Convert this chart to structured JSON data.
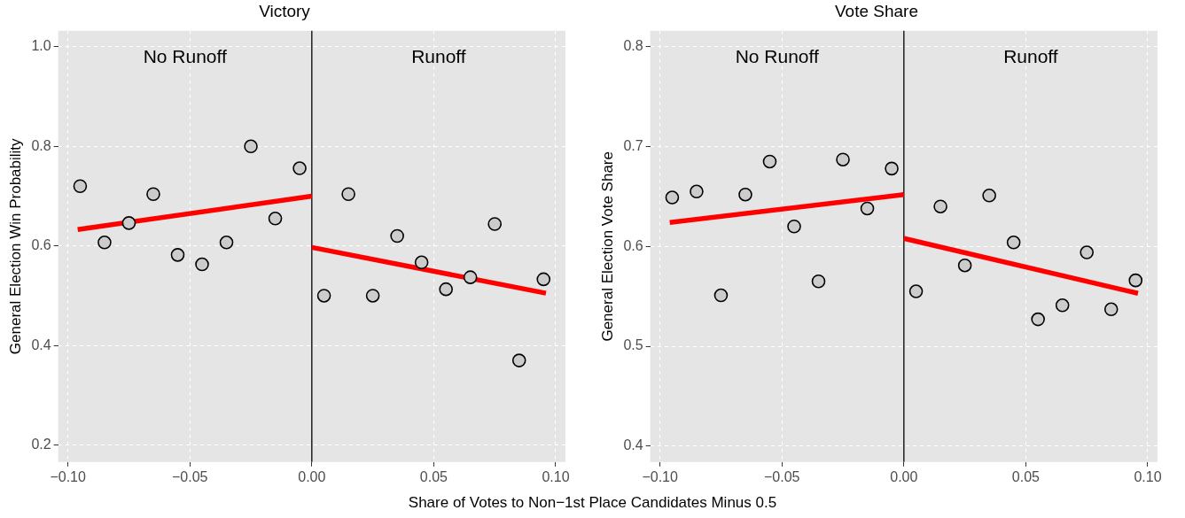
{
  "chart_data": [
    {
      "type": "scatter",
      "title": "Victory",
      "xlabel": "Share of Votes to Non−1st Place Candidates Minus 0.5",
      "ylabel": "General Election Win Probability",
      "xlim": [
        -0.104,
        0.104
      ],
      "xticks": [
        {
          "value": -0.1,
          "label": "−0.10"
        },
        {
          "value": -0.05,
          "label": "−0.05"
        },
        {
          "value": 0,
          "label": "0.00"
        },
        {
          "value": 0.05,
          "label": "0.05"
        },
        {
          "value": 0.1,
          "label": "0.10"
        }
      ],
      "ylim": [
        0.166,
        1.032
      ],
      "yticks": [
        {
          "value": 0.2,
          "label": "0.2"
        },
        {
          "value": 0.4,
          "label": "0.4"
        },
        {
          "value": 0.6,
          "label": "0.6"
        },
        {
          "value": 0.8,
          "label": "0.8"
        },
        {
          "value": 1.0,
          "label": "1.0"
        }
      ],
      "grid": true,
      "legend": false,
      "annotations": [
        "No Runoff",
        "Runoff"
      ],
      "ref_lines": [
        {
          "axis": "x",
          "value": 0,
          "color": "#000000"
        }
      ],
      "series": [
        {
          "type": "scatter",
          "marker": "circle",
          "color": "#cccccc",
          "x": [
            -0.095,
            -0.085,
            -0.075,
            -0.065,
            -0.055,
            -0.045,
            -0.035,
            -0.025,
            -0.015,
            -0.005,
            0.005,
            0.015,
            0.025,
            0.035,
            0.045,
            0.055,
            0.065,
            0.075,
            0.085,
            0.095
          ],
          "values": [
            0.72,
            0.607,
            0.646,
            0.704,
            0.582,
            0.563,
            0.607,
            0.8,
            0.655,
            0.756,
            0.5,
            0.704,
            0.5,
            0.62,
            0.567,
            0.513,
            0.537,
            0.644,
            0.37,
            0.533
          ]
        },
        {
          "type": "line",
          "marker": "none",
          "color": "#ff0000",
          "x": [
            -0.096,
            0
          ],
          "values": [
            0.633,
            0.7
          ]
        },
        {
          "type": "line",
          "marker": "none",
          "color": "#ff0000",
          "x": [
            0,
            0.096
          ],
          "values": [
            0.597,
            0.505
          ]
        }
      ]
    },
    {
      "type": "scatter",
      "title": "Vote Share",
      "ylabel": "General Election Vote Share",
      "xlim": [
        -0.104,
        0.104
      ],
      "xticks": [
        {
          "value": -0.1,
          "label": "−0.10"
        },
        {
          "value": -0.05,
          "label": "−0.05"
        },
        {
          "value": 0,
          "label": "0.00"
        },
        {
          "value": 0.05,
          "label": "0.05"
        },
        {
          "value": 0.1,
          "label": "0.10"
        }
      ],
      "ylim": [
        0.384,
        0.816
      ],
      "yticks": [
        {
          "value": 0.4,
          "label": "0.4"
        },
        {
          "value": 0.5,
          "label": "0.5"
        },
        {
          "value": 0.6,
          "label": "0.6"
        },
        {
          "value": 0.7,
          "label": "0.7"
        },
        {
          "value": 0.8,
          "label": "0.8"
        }
      ],
      "grid": true,
      "legend": false,
      "annotations": [
        "No Runoff",
        "Runoff"
      ],
      "ref_lines": [
        {
          "axis": "x",
          "value": 0,
          "color": "#000000"
        }
      ],
      "series": [
        {
          "type": "scatter",
          "marker": "circle",
          "color": "#cccccc",
          "x": [
            -0.095,
            -0.085,
            -0.075,
            -0.065,
            -0.055,
            -0.045,
            -0.035,
            -0.025,
            -0.015,
            -0.005,
            0.005,
            0.015,
            0.025,
            0.035,
            0.045,
            0.055,
            0.065,
            0.075,
            0.085,
            0.095
          ],
          "values": [
            0.649,
            0.655,
            0.551,
            0.652,
            0.685,
            0.62,
            0.565,
            0.687,
            0.638,
            0.678,
            0.555,
            0.64,
            0.581,
            0.651,
            0.604,
            0.527,
            0.541,
            0.594,
            0.537,
            0.566
          ]
        },
        {
          "type": "line",
          "marker": "none",
          "color": "#ff0000",
          "x": [
            -0.096,
            0
          ],
          "values": [
            0.624,
            0.652
          ]
        },
        {
          "type": "line",
          "marker": "none",
          "color": "#ff0000",
          "x": [
            0,
            0.096
          ],
          "values": [
            0.608,
            0.553
          ]
        }
      ]
    }
  ]
}
